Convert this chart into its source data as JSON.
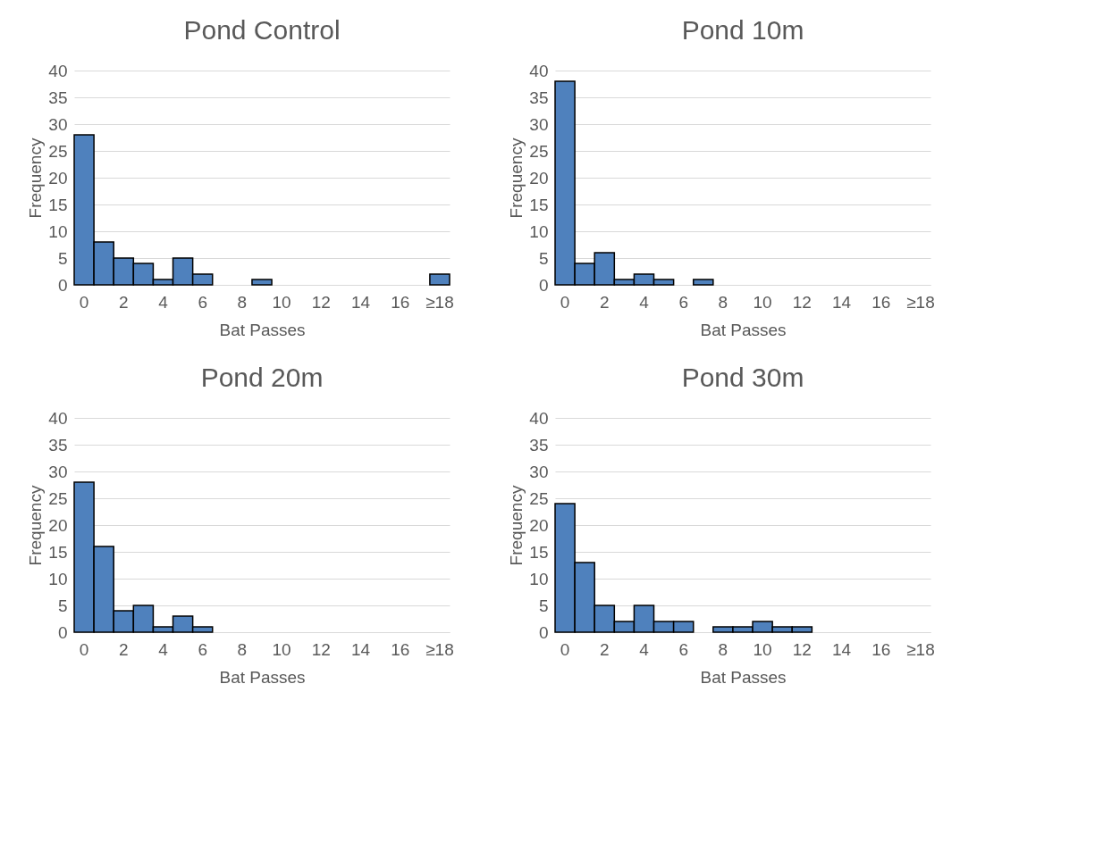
{
  "chart_data": [
    {
      "type": "bar",
      "title": "Pond Control",
      "xlabel": "Bat Passes",
      "ylabel": "Frequency",
      "categories": [
        "0",
        null,
        "2",
        null,
        "4",
        null,
        "6",
        null,
        "8",
        null,
        "10",
        null,
        "12",
        null,
        "14",
        null,
        "16",
        null,
        "≥18"
      ],
      "values": [
        28,
        8,
        5,
        4,
        1,
        5,
        2,
        0,
        0,
        1,
        0,
        0,
        0,
        0,
        0,
        0,
        0,
        0,
        2
      ],
      "color": "#4f81bd",
      "ylim": [
        0,
        40
      ],
      "yticks": [
        0,
        5,
        10,
        15,
        20,
        25,
        30,
        35,
        40
      ],
      "grid": "y"
    },
    {
      "type": "bar",
      "title": "Pond 10m",
      "xlabel": "Bat Passes",
      "ylabel": "Frequency",
      "categories": [
        "0",
        null,
        "2",
        null,
        "4",
        null,
        "6",
        null,
        "8",
        null,
        "10",
        null,
        "12",
        null,
        "14",
        null,
        "16",
        null,
        "≥18"
      ],
      "values": [
        38,
        4,
        6,
        1,
        2,
        1,
        0,
        1,
        0,
        0,
        0,
        0,
        0,
        0,
        0,
        0,
        0,
        0,
        0
      ],
      "color": "#4f81bd",
      "ylim": [
        0,
        40
      ],
      "yticks": [
        0,
        5,
        10,
        15,
        20,
        25,
        30,
        35,
        40
      ],
      "grid": "y"
    },
    {
      "type": "bar",
      "title": "Pond 20m",
      "xlabel": "Bat Passes",
      "ylabel": "Frequency",
      "categories": [
        "0",
        null,
        "2",
        null,
        "4",
        null,
        "6",
        null,
        "8",
        null,
        "10",
        null,
        "12",
        null,
        "14",
        null,
        "16",
        null,
        "≥18"
      ],
      "values": [
        28,
        16,
        4,
        5,
        1,
        3,
        1,
        0,
        0,
        0,
        0,
        0,
        0,
        0,
        0,
        0,
        0,
        0,
        0
      ],
      "color": "#4f81bd",
      "ylim": [
        0,
        40
      ],
      "yticks": [
        0,
        5,
        10,
        15,
        20,
        25,
        30,
        35,
        40
      ],
      "grid": "y"
    },
    {
      "type": "bar",
      "title": "Pond 30m",
      "xlabel": "Bat Passes",
      "ylabel": "Frequency",
      "categories": [
        "0",
        null,
        "2",
        null,
        "4",
        null,
        "6",
        null,
        "8",
        null,
        "10",
        null,
        "12",
        null,
        "14",
        null,
        "16",
        null,
        "≥18"
      ],
      "values": [
        24,
        13,
        5,
        2,
        5,
        2,
        2,
        0,
        1,
        1,
        2,
        1,
        1,
        0,
        0,
        0,
        0,
        0,
        0
      ],
      "color": "#4f81bd",
      "ylim": [
        0,
        40
      ],
      "yticks": [
        0,
        5,
        10,
        15,
        20,
        25,
        30,
        35,
        40
      ],
      "grid": "y"
    }
  ]
}
